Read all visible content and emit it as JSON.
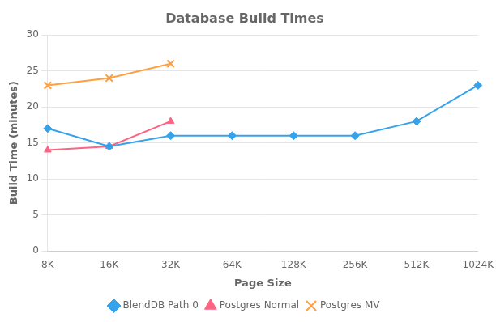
{
  "chart_data": {
    "type": "line",
    "title": "Database Build Times",
    "xlabel": "Page Size",
    "ylabel": "Build Time (minutes)",
    "categories": [
      "8K",
      "16K",
      "32K",
      "64K",
      "128K",
      "256K",
      "512K",
      "1024K"
    ],
    "series": [
      {
        "name": "BlendDB Path 0",
        "marker": "diamond",
        "values": [
          17,
          14.5,
          16,
          16,
          16,
          16,
          18,
          23
        ]
      },
      {
        "name": "Postgres Normal",
        "marker": "triangle",
        "values": [
          14,
          14.5,
          18,
          null,
          null,
          null,
          null,
          null
        ]
      },
      {
        "name": "Postgres MV",
        "marker": "x",
        "values": [
          23,
          24,
          26,
          null,
          null,
          null,
          null,
          null
        ]
      }
    ],
    "ylim": [
      0,
      30
    ],
    "yticks": [
      0,
      5,
      10,
      15,
      20,
      25,
      30
    ],
    "grid": true,
    "legend": "bottom"
  }
}
